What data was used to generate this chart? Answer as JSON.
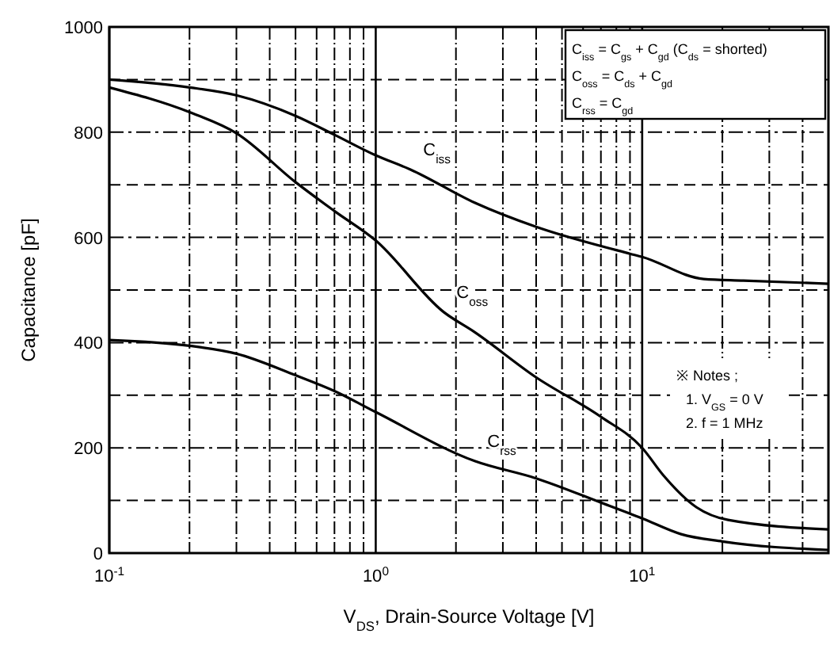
{
  "chart_data": {
    "type": "line",
    "xlabel": "V$_{DS}$, Drain-Source Voltage [V]",
    "ylabel": "Capacitance [pF]",
    "log": "x",
    "grid": true,
    "line_style": "solid",
    "marker": "none",
    "xlim": [
      0.1,
      50
    ],
    "ylim": [
      0,
      1000
    ],
    "xticks": [
      {
        "value": 0.1,
        "label": "10$^{-1}$"
      },
      {
        "value": 0.2,
        "label": null
      },
      {
        "value": 0.3,
        "label": null
      },
      {
        "value": 0.4,
        "label": null
      },
      {
        "value": 0.5,
        "label": null
      },
      {
        "value": 0.6,
        "label": null
      },
      {
        "value": 0.7,
        "label": null
      },
      {
        "value": 0.8,
        "label": null
      },
      {
        "value": 0.9,
        "label": null
      },
      {
        "value": 1,
        "label": "10$^{0}$"
      },
      {
        "value": 2,
        "label": null
      },
      {
        "value": 3,
        "label": null
      },
      {
        "value": 4,
        "label": null
      },
      {
        "value": 5,
        "label": null
      },
      {
        "value": 6,
        "label": null
      },
      {
        "value": 7,
        "label": null
      },
      {
        "value": 8,
        "label": null
      },
      {
        "value": 9,
        "label": null
      },
      {
        "value": 10,
        "label": "10$^{1}$"
      },
      {
        "value": 20,
        "label": null
      },
      {
        "value": 30,
        "label": null
      },
      {
        "value": 40,
        "label": null
      }
    ],
    "yticks": [
      0,
      {
        "value": 100,
        "label": null
      },
      200,
      {
        "value": 300,
        "label": null
      },
      400,
      {
        "value": 500,
        "label": null
      },
      600,
      {
        "value": 700,
        "label": null
      },
      800,
      {
        "value": 900,
        "label": null
      },
      1000
    ],
    "series": [
      {
        "name": "C$_{iss}$",
        "color": "#000000",
        "x": [
          0.1,
          0.2,
          0.3,
          0.5,
          0.7,
          1,
          1.35,
          2.35,
          4,
          9,
          10,
          17,
          24,
          50
        ],
        "values": [
          900,
          885,
          870,
          831,
          795,
          756,
          729,
          666,
          620,
          569,
          563,
          521,
          518,
          512
        ]
      },
      {
        "name": "C$_{oss}$",
        "color": "#000000",
        "x": [
          0.1,
          0.2,
          0.3,
          0.5,
          0.7,
          1,
          1.8,
          2.35,
          4,
          7,
          10,
          12,
          16,
          21,
          50
        ],
        "values": [
          885,
          838,
          798,
          705,
          650,
          594,
          458,
          420,
          334,
          259,
          200,
          148,
          87,
          63,
          45
        ]
      },
      {
        "name": "C$_{rss}$",
        "color": "#000000",
        "x": [
          0.1,
          0.2,
          0.3,
          0.5,
          0.7,
          1,
          2.35,
          4,
          7,
          10,
          14,
          20,
          50
        ],
        "values": [
          405,
          394,
          379,
          338,
          308,
          268,
          175,
          142,
          96,
          66,
          36,
          22,
          6
        ]
      }
    ],
    "annotations": [
      "C$_{iss}$ = C$_{gs}$ + C$_{gd}$ (C$_{ds}$ = shorted)",
      "C$_{oss}$ = C$_{ds}$ + C$_{gd}$",
      "C$_{rss}$ = C$_{gd}$",
      "※ Notes ;",
      "1. V$_{GS}$ = 0 V",
      "2. f = 1 MHz"
    ]
  }
}
